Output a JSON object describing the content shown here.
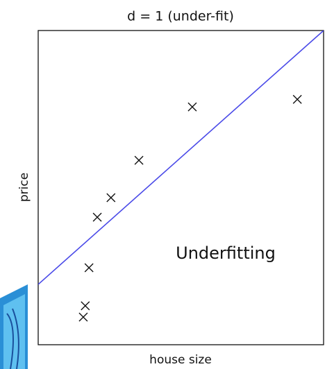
{
  "chart_data": {
    "type": "scatter",
    "title": "d = 1 (under-fit)",
    "x_label": "house size",
    "y_label": "price",
    "annotation": "Underfitting",
    "series": [
      {
        "x": [
          1.58,
          1.65,
          1.78,
          2.07,
          2.55,
          3.53,
          5.4,
          9.08
        ],
        "values": [
          0.88,
          1.24,
          2.45,
          4.06,
          4.68,
          5.87,
          7.57,
          7.81
        ],
        "color": "#111111"
      }
    ],
    "fit_line": {
      "x": [
        0,
        10
      ],
      "values": [
        1.92,
        10
      ],
      "color": "#4a4ae8"
    },
    "xlim": [
      0,
      10
    ],
    "ylim": [
      0,
      10
    ]
  }
}
